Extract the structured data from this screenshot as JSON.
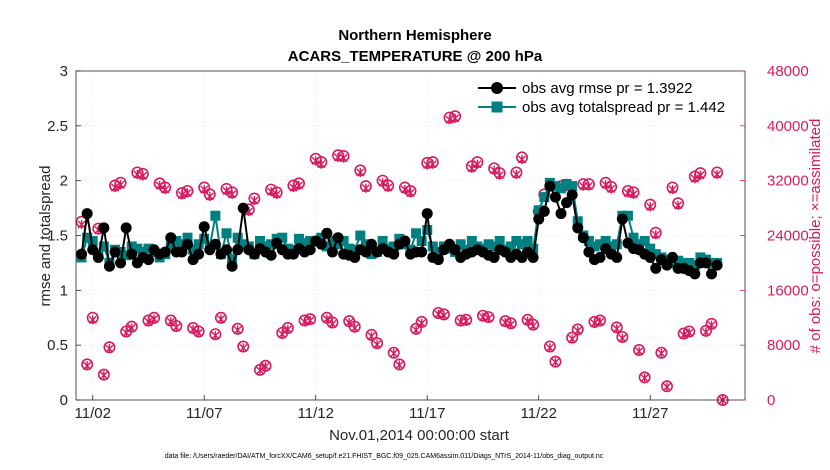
{
  "chart_data": {
    "type": "line",
    "title": "Northern Hemisphere",
    "subtitle": "ACARS_TEMPERATURE @ 200 hPa",
    "xlabel": "Nov.01,2014 00:00:00 start",
    "ylabel": "rmse and totalspread",
    "ylabel_right": "# of obs: o=possible; ×=assimilated",
    "footnote": "data file: /Users/raeder/DAI/ATM_forcXX/CAM6_setup/f.e21.FHIST_BGC.f09_025.CAM6assim.011/Diags_NTrS_2014-11/obs_diag_output.nc",
    "x_ticks": [
      "11/02",
      "11/07",
      "11/12",
      "11/17",
      "11/22",
      "11/27"
    ],
    "x_tick_values": [
      2,
      7,
      12,
      17,
      22,
      27
    ],
    "xlim": [
      1.25,
      31.25
    ],
    "ylim": [
      0,
      3
    ],
    "y_ticks": [
      "0",
      "0.5",
      "1",
      "1.5",
      "2",
      "2.5",
      "3"
    ],
    "ylim_right": [
      0,
      48000
    ],
    "y_ticks_right": [
      "0",
      "8000",
      "16000",
      "24000",
      "32000",
      "40000",
      "48000"
    ],
    "x_start": 1.5,
    "x_step": 0.25,
    "legend_position": "top-right",
    "colors": {
      "rmse": "#000000",
      "spread": "#008080",
      "obs": "#d81b60",
      "axis_right": "#d81b60"
    },
    "series": [
      {
        "name": "obs avg rmse pr = 1.3922",
        "values": [
          1.33,
          1.7,
          1.37,
          1.3,
          1.57,
          1.22,
          1.35,
          1.25,
          1.57,
          1.33,
          1.25,
          1.3,
          1.28,
          1.37,
          1.33,
          1.35,
          1.48,
          1.35,
          1.35,
          1.42,
          1.28,
          1.33,
          1.58,
          1.37,
          1.42,
          1.33,
          1.37,
          1.22,
          1.37,
          1.75,
          1.37,
          1.33,
          1.38,
          1.35,
          1.32,
          1.43,
          1.37,
          1.33,
          1.33,
          1.38,
          1.35,
          1.37,
          1.45,
          1.42,
          1.52,
          1.35,
          1.48,
          1.33,
          1.32,
          1.3,
          1.37,
          1.35,
          1.42,
          1.35,
          1.38,
          1.35,
          1.33,
          1.42,
          1.45,
          1.33,
          1.35,
          1.35,
          1.7,
          1.3,
          1.28,
          1.37,
          1.42,
          1.37,
          1.3,
          1.33,
          1.35,
          1.37,
          1.35,
          1.32,
          1.3,
          1.37,
          1.35,
          1.3,
          1.33,
          1.3,
          1.35,
          1.3,
          1.65,
          1.72,
          1.95,
          1.85,
          1.7,
          1.8,
          1.87,
          1.57,
          1.48,
          1.35,
          1.28,
          1.3,
          1.38,
          1.33,
          1.3,
          1.65,
          1.43,
          1.38,
          1.37,
          1.33,
          1.3,
          1.2,
          1.28,
          1.23,
          1.3,
          1.2,
          1.2,
          1.18,
          1.15,
          1.25,
          1.25,
          1.15,
          1.23
        ]
      },
      {
        "name": "obs avg totalspread pr = 1.442",
        "values": [
          1.3,
          1.48,
          1.45,
          1.33,
          1.4,
          1.25,
          1.37,
          1.35,
          1.32,
          1.4,
          1.38,
          1.35,
          1.38,
          1.35,
          1.3,
          1.33,
          1.4,
          1.45,
          1.42,
          1.48,
          1.37,
          1.42,
          1.47,
          1.4,
          1.68,
          1.33,
          1.52,
          1.28,
          1.48,
          1.42,
          1.4,
          1.33,
          1.45,
          1.4,
          1.42,
          1.47,
          1.48,
          1.38,
          1.37,
          1.47,
          1.43,
          1.45,
          1.45,
          1.48,
          1.4,
          1.45,
          1.42,
          1.45,
          1.38,
          1.37,
          1.5,
          1.42,
          1.33,
          1.35,
          1.45,
          1.38,
          1.4,
          1.47,
          1.42,
          1.37,
          1.52,
          1.45,
          1.55,
          1.4,
          1.35,
          1.4,
          1.38,
          1.35,
          1.42,
          1.37,
          1.45,
          1.4,
          1.38,
          1.42,
          1.4,
          1.45,
          1.37,
          1.4,
          1.45,
          1.42,
          1.45,
          1.38,
          1.73,
          1.85,
          1.98,
          1.95,
          1.93,
          1.97,
          1.95,
          1.63,
          1.5,
          1.45,
          1.4,
          1.42,
          1.45,
          1.4,
          1.42,
          1.68,
          1.68,
          1.48,
          1.42,
          1.45,
          1.38,
          1.33,
          1.3,
          1.28,
          1.25,
          1.27,
          1.25,
          1.25,
          1.23,
          1.3,
          1.28,
          1.25,
          1.25
        ]
      },
      {
        "name": "obs possible",
        "values": [
          26000,
          5200,
          12000,
          25000,
          3700,
          7700,
          31300,
          31700,
          10000,
          10700,
          33200,
          33000,
          11600,
          12000,
          31600,
          31000,
          11600,
          10800,
          30200,
          30500,
          10500,
          10000,
          31000,
          30000,
          9600,
          12000,
          30800,
          30300,
          10400,
          7800,
          27800,
          29400,
          4400,
          5000,
          30700,
          30300,
          9800,
          10500,
          31300,
          31600,
          11600,
          11800,
          35200,
          34700,
          12000,
          11300,
          35700,
          35600,
          11500,
          10700,
          33500,
          31200,
          9500,
          8300,
          32000,
          31300,
          6900,
          5200,
          31000,
          30500,
          10400,
          11400,
          34600,
          34700,
          12700,
          12500,
          41200,
          41400,
          11600,
          11700,
          34100,
          34700,
          12300,
          12100,
          33800,
          33100,
          11500,
          11200,
          33200,
          35400,
          11700,
          11000,
          27500,
          30000,
          7800,
          5600,
          31200,
          31400,
          9100,
          10300,
          31500,
          31500,
          11400,
          11600,
          31700,
          31100,
          10600,
          9200,
          30500,
          30300,
          7300,
          3300,
          28500,
          24400,
          6900,
          2000,
          31000,
          28700,
          9700,
          10000,
          32600,
          33100,
          10100,
          11100,
          33200,
          0
        ]
      },
      {
        "name": "obs assimilated",
        "values": [
          25600,
          5000,
          11700,
          24800,
          3600,
          7500,
          31000,
          31400,
          9800,
          10500,
          32900,
          32700,
          11400,
          11800,
          31300,
          30700,
          11400,
          10600,
          29900,
          30200,
          10300,
          9800,
          30700,
          29700,
          9400,
          11800,
          30500,
          30000,
          10200,
          7600,
          27500,
          29100,
          4300,
          4900,
          30400,
          30000,
          9600,
          10300,
          31000,
          31300,
          11400,
          11600,
          34900,
          34400,
          11800,
          11100,
          35400,
          35300,
          11300,
          10500,
          33200,
          30900,
          9300,
          8100,
          31700,
          31000,
          6800,
          5100,
          30700,
          30200,
          10200,
          11200,
          34300,
          34400,
          12500,
          12300,
          40900,
          41100,
          11400,
          11500,
          33800,
          34400,
          12100,
          11900,
          33500,
          32800,
          11300,
          11000,
          32900,
          35100,
          11500,
          10800,
          27200,
          29700,
          7600,
          5500,
          30900,
          31100,
          8900,
          10100,
          31200,
          31200,
          11200,
          11400,
          31400,
          30800,
          10400,
          9000,
          30200,
          30000,
          7100,
          3200,
          28200,
          24100,
          6800,
          1900,
          30700,
          28400,
          9500,
          9800,
          32300,
          32800,
          9900,
          10900,
          32900,
          0
        ]
      }
    ]
  }
}
